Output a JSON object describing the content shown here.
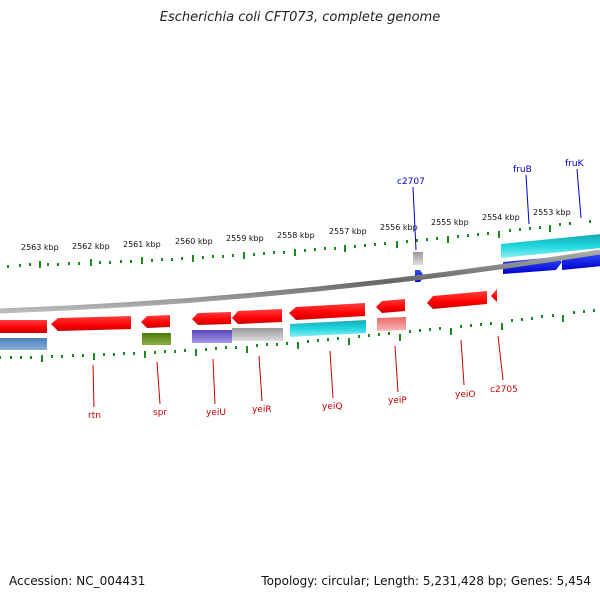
{
  "title": "Escherichia coli CFT073, complete genome",
  "footer": {
    "accession": "Accession: NC_004431",
    "summary": "Topology: circular; Length: 5,231,428 bp; Genes: 5,454"
  },
  "colors": {
    "forward_gene": "#ff0000",
    "reverse_gene": "#ff0000",
    "label_forward": "#0000cc",
    "label_reverse": "#cc0000",
    "tick": "#1a8a1a",
    "backbone": "#888888"
  },
  "scale_labels": [
    "2563 kbp",
    "2562 kbp",
    "2561 kbp",
    "2560 kbp",
    "2559 kbp",
    "2558 kbp",
    "2557 kbp",
    "2556 kbp",
    "2555 kbp",
    "2554 kbp",
    "2553 kbp"
  ],
  "gene_labels": {
    "c2707": "c2707",
    "fruB": "fruB",
    "fruK": "fruK",
    "rtn": "rtn",
    "spr": "spr",
    "yeiU": "yeiU",
    "yeiR": "yeiR",
    "yeiQ": "yeiQ",
    "yeiP": "yeiP",
    "yeiO": "yeiO",
    "c2705": "c2705"
  }
}
